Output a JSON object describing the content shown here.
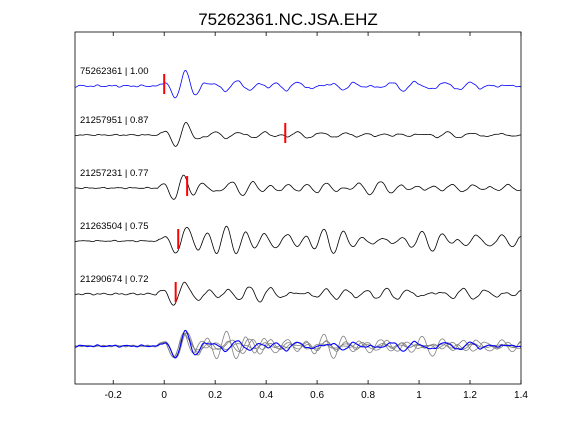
{
  "chart_data": {
    "type": "line",
    "title": "75262361.NC.JSA.EHZ",
    "xlabel": "",
    "ylabel": "",
    "xlim": [
      -0.35,
      1.4
    ],
    "x_ticks": [
      -0.2,
      0,
      0.2,
      0.4,
      0.6,
      0.8,
      1,
      1.2,
      1.4
    ],
    "x_tick_labels": [
      "-0.2",
      "0",
      "0.2",
      "0.4",
      "0.6",
      "0.8",
      "1",
      "1.2",
      "1.4"
    ],
    "grid": false,
    "legend": "none",
    "colors": {
      "master": "#0000ff",
      "trace": "#000000",
      "overlay": "#808080",
      "pick": "#ff0000"
    },
    "traces": [
      {
        "label": "75262361 | 1.00",
        "pick_time": 0.0,
        "shift": 0.0,
        "color": "#0000ff",
        "noise": 0.08,
        "coda": 0.42,
        "seed": 11
      },
      {
        "label": "21257951 | 0.87",
        "pick_time": 0.475,
        "shift": 0.0,
        "color": "#000000",
        "noise": 0.05,
        "coda": 0.3,
        "seed": 23
      },
      {
        "label": "21257231 | 0.77",
        "pick_time": 0.09,
        "shift": -0.005,
        "color": "#000000",
        "noise": 0.05,
        "coda": 0.55,
        "seed": 37
      },
      {
        "label": "21263504 | 0.75",
        "pick_time": 0.055,
        "shift": -0.005,
        "color": "#000000",
        "noise": 0.05,
        "coda": 0.72,
        "seed": 41
      },
      {
        "label": "21290674 | 0.72",
        "pick_time": 0.045,
        "shift": -0.01,
        "color": "#000000",
        "noise": 0.08,
        "coda": 0.85,
        "seed": 53
      }
    ],
    "overlay": {
      "label": "",
      "members": 5
    }
  }
}
